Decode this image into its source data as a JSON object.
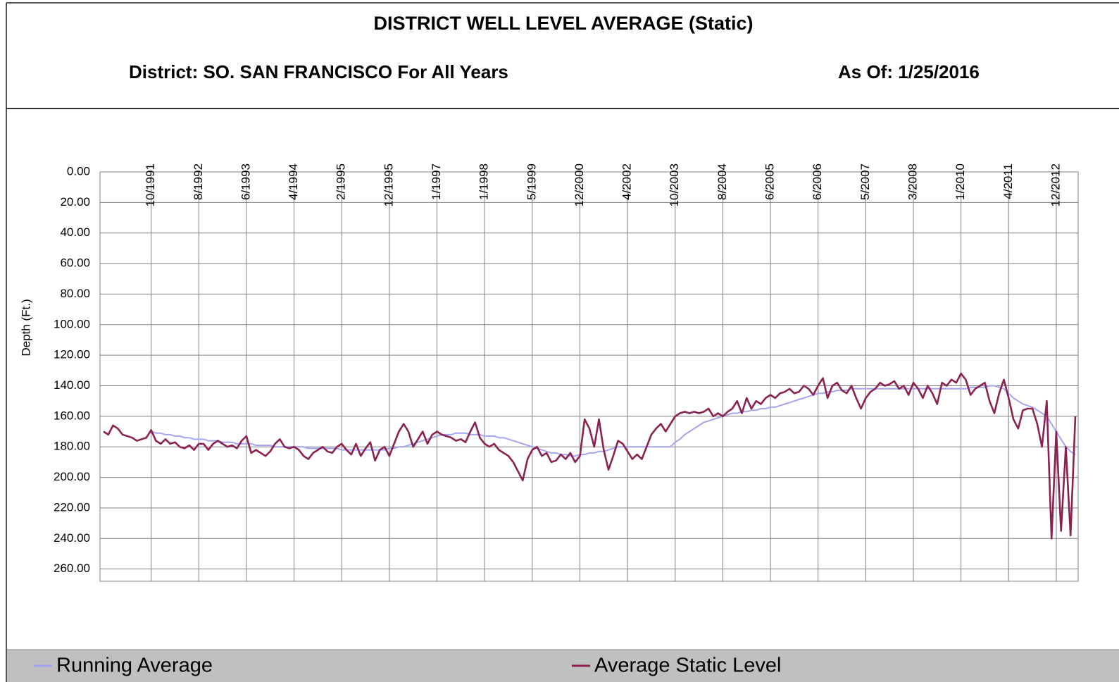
{
  "chart_data": {
    "type": "line",
    "title": "DISTRICT WELL LEVEL AVERAGE (Static)",
    "subtitle": "District: SO. SAN FRANCISCO For All Years",
    "as_of": "As Of: 1/25/2016",
    "y_label": "Depth (Ft.)",
    "inverted": true,
    "grid": true,
    "legend": "bottom",
    "ylim": [
      0,
      268
    ],
    "yticks": [
      {
        "value": 0,
        "label": "0.00"
      },
      {
        "value": 20,
        "label": "20.00"
      },
      {
        "value": 40,
        "label": "40.00"
      },
      {
        "value": 60,
        "label": "60.00"
      },
      {
        "value": 80,
        "label": "80.00"
      },
      {
        "value": 100,
        "label": "100.00"
      },
      {
        "value": 120,
        "label": "120.00"
      },
      {
        "value": 140,
        "label": "140.00"
      },
      {
        "value": 160,
        "label": "160.00"
      },
      {
        "value": 180,
        "label": "180.00"
      },
      {
        "value": 200,
        "label": "200.00"
      },
      {
        "value": 220,
        "label": "220.00"
      },
      {
        "value": 240,
        "label": "240.00"
      },
      {
        "value": 260,
        "label": "260.00"
      }
    ],
    "categories": [
      null,
      null,
      null,
      null,
      null,
      null,
      null,
      null,
      null,
      null,
      "10/1991",
      null,
      null,
      null,
      null,
      null,
      null,
      null,
      null,
      null,
      "8/1992",
      null,
      null,
      null,
      null,
      null,
      null,
      null,
      null,
      null,
      "6/1993",
      null,
      null,
      null,
      null,
      null,
      null,
      null,
      null,
      null,
      "4/1994",
      null,
      null,
      null,
      null,
      null,
      null,
      null,
      null,
      null,
      "2/1995",
      null,
      null,
      null,
      null,
      null,
      null,
      null,
      null,
      null,
      "12/1995",
      null,
      null,
      null,
      null,
      null,
      null,
      null,
      null,
      null,
      "1/1997",
      null,
      null,
      null,
      null,
      null,
      null,
      null,
      null,
      null,
      "1/1998",
      null,
      null,
      null,
      null,
      null,
      null,
      null,
      null,
      null,
      "5/1999",
      null,
      null,
      null,
      null,
      null,
      null,
      null,
      null,
      null,
      "12/2000",
      null,
      null,
      null,
      null,
      null,
      null,
      null,
      null,
      null,
      "4/2002",
      null,
      null,
      null,
      null,
      null,
      null,
      null,
      null,
      null,
      "10/2003",
      null,
      null,
      null,
      null,
      null,
      null,
      null,
      null,
      null,
      "8/2004",
      null,
      null,
      null,
      null,
      null,
      null,
      null,
      null,
      null,
      "6/2005",
      null,
      null,
      null,
      null,
      null,
      null,
      null,
      null,
      null,
      "6/2006",
      null,
      null,
      null,
      null,
      null,
      null,
      null,
      null,
      null,
      "5/2007",
      null,
      null,
      null,
      null,
      null,
      null,
      null,
      null,
      null,
      "3/2008",
      null,
      null,
      null,
      null,
      null,
      null,
      null,
      null,
      null,
      "1/2010",
      null,
      null,
      null,
      null,
      null,
      null,
      null,
      null,
      null,
      "4/2011",
      null,
      null,
      null,
      null,
      null,
      null,
      null,
      null,
      null,
      "12/2012",
      null,
      null,
      null,
      null
    ],
    "series": [
      {
        "name": "Running Average",
        "color": "#a4a4f0",
        "values": [
          null,
          null,
          null,
          null,
          null,
          null,
          null,
          null,
          null,
          null,
          170,
          171,
          171,
          172,
          172,
          173,
          173,
          174,
          174,
          175,
          175,
          175,
          176,
          176,
          176,
          177,
          177,
          177,
          178,
          178,
          178,
          178,
          179,
          179,
          179,
          179,
          180,
          180,
          180,
          180,
          180,
          180,
          180,
          181,
          181,
          181,
          181,
          181,
          181,
          181,
          182,
          182,
          182,
          182,
          182,
          182,
          182,
          182,
          182,
          182,
          181,
          181,
          180,
          180,
          179,
          178,
          177,
          176,
          175,
          174,
          173,
          172,
          172,
          172,
          171,
          171,
          171,
          172,
          172,
          172,
          173,
          173,
          173,
          174,
          174,
          175,
          176,
          177,
          178,
          179,
          180,
          181,
          182,
          183,
          184,
          184,
          185,
          185,
          186,
          186,
          185,
          185,
          184,
          184,
          183,
          183,
          182,
          181,
          180,
          180,
          180,
          180,
          180,
          180,
          180,
          180,
          180,
          180,
          180,
          180,
          177,
          175,
          172,
          170,
          168,
          166,
          164,
          163,
          162,
          161,
          160,
          159,
          158,
          158,
          157,
          157,
          156,
          156,
          155,
          155,
          154,
          154,
          153,
          152,
          151,
          150,
          149,
          148,
          147,
          146,
          145,
          145,
          144,
          144,
          143,
          143,
          143,
          142,
          142,
          142,
          142,
          142,
          142,
          142,
          142,
          142,
          142,
          142,
          142,
          142,
          142,
          142,
          142,
          142,
          142,
          142,
          142,
          142,
          142,
          142,
          142,
          142,
          141,
          141,
          141,
          141,
          140,
          140,
          141,
          142,
          145,
          148,
          150,
          152,
          153,
          154,
          156,
          158,
          160,
          165,
          170,
          175,
          180,
          183,
          185
        ]
      },
      {
        "name": "Average Static Level",
        "color": "#8b2252",
        "values": [
          170,
          172,
          166,
          168,
          172,
          173,
          174,
          176,
          175,
          174,
          169,
          176,
          178,
          175,
          178,
          177,
          180,
          181,
          179,
          182,
          178,
          178,
          182,
          178,
          176,
          178,
          180,
          179,
          181,
          176,
          173,
          184,
          182,
          184,
          186,
          183,
          178,
          175,
          180,
          181,
          180,
          182,
          186,
          188,
          184,
          182,
          180,
          183,
          184,
          180,
          178,
          182,
          185,
          178,
          186,
          181,
          177,
          189,
          182,
          180,
          186,
          178,
          170,
          165,
          170,
          180,
          175,
          170,
          178,
          172,
          170,
          172,
          173,
          174,
          176,
          175,
          177,
          170,
          164,
          174,
          178,
          180,
          178,
          182,
          184,
          186,
          190,
          196,
          202,
          188,
          182,
          180,
          186,
          184,
          190,
          189,
          185,
          188,
          184,
          190,
          186,
          162,
          168,
          180,
          162,
          182,
          195,
          186,
          176,
          178,
          183,
          188,
          185,
          188,
          180,
          172,
          168,
          165,
          170,
          165,
          160,
          158,
          157,
          158,
          157,
          158,
          157,
          155,
          160,
          158,
          160,
          157,
          155,
          150,
          158,
          148,
          155,
          150,
          152,
          148,
          146,
          148,
          145,
          144,
          142,
          145,
          144,
          140,
          142,
          146,
          140,
          135,
          148,
          140,
          138,
          143,
          145,
          140,
          148,
          155,
          148,
          144,
          142,
          138,
          140,
          139,
          137,
          142,
          140,
          146,
          138,
          142,
          148,
          140,
          145,
          152,
          138,
          140,
          136,
          138,
          132,
          136,
          146,
          142,
          140,
          138,
          150,
          158,
          145,
          136,
          148,
          162,
          168,
          156,
          155,
          155,
          165,
          180,
          150,
          240,
          170,
          235,
          180,
          238,
          160
        ]
      }
    ]
  }
}
